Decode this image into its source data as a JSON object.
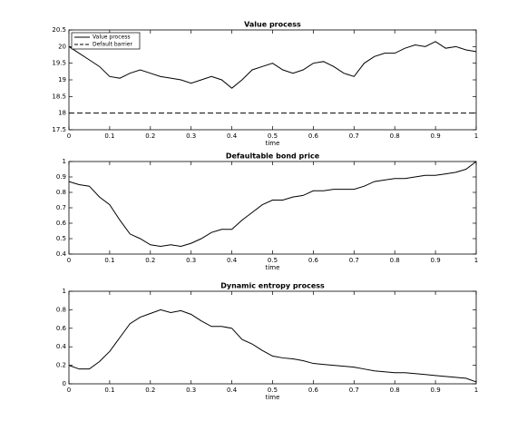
{
  "chart_data": [
    {
      "type": "line",
      "title": "Value process",
      "xlabel": "time",
      "x": [
        0,
        0.025,
        0.05,
        0.075,
        0.1,
        0.125,
        0.15,
        0.175,
        0.2,
        0.225,
        0.25,
        0.275,
        0.3,
        0.325,
        0.35,
        0.375,
        0.4,
        0.425,
        0.45,
        0.475,
        0.5,
        0.525,
        0.55,
        0.575,
        0.6,
        0.625,
        0.65,
        0.675,
        0.7,
        0.725,
        0.75,
        0.775,
        0.8,
        0.825,
        0.85,
        0.875,
        0.9,
        0.925,
        0.95,
        0.975,
        1
      ],
      "series": [
        {
          "name": "Value process",
          "color": "#000000",
          "linestyle": "solid",
          "values": [
            20.0,
            19.8,
            19.6,
            19.4,
            19.1,
            19.05,
            19.2,
            19.3,
            19.2,
            19.1,
            19.05,
            19.0,
            18.9,
            19.0,
            19.1,
            19.0,
            18.75,
            19.0,
            19.3,
            19.4,
            19.5,
            19.3,
            19.2,
            19.3,
            19.5,
            19.55,
            19.4,
            19.2,
            19.1,
            19.5,
            19.7,
            19.8,
            19.8,
            19.95,
            20.05,
            20.0,
            20.15,
            19.95,
            20.0,
            19.9,
            19.85
          ]
        },
        {
          "name": "Default barrier",
          "color": "#000000",
          "linestyle": "dashed",
          "values": [
            18,
            18,
            18,
            18,
            18,
            18,
            18,
            18,
            18,
            18,
            18,
            18,
            18,
            18,
            18,
            18,
            18,
            18,
            18,
            18,
            18,
            18,
            18,
            18,
            18,
            18,
            18,
            18,
            18,
            18,
            18,
            18,
            18,
            18,
            18,
            18,
            18,
            18,
            18,
            18,
            18
          ]
        }
      ],
      "xlim": [
        0,
        1
      ],
      "xticks": [
        0,
        0.1,
        0.2,
        0.3,
        0.4,
        0.5,
        0.6,
        0.7,
        0.8,
        0.9,
        1
      ],
      "ylim": [
        17.5,
        20.5
      ],
      "yticks": [
        17.5,
        18,
        18.5,
        19,
        19.5,
        20,
        20.5
      ],
      "legend": "upper left",
      "grid": false
    },
    {
      "type": "line",
      "title": "Defaultable bond price",
      "xlabel": "time",
      "x": [
        0,
        0.025,
        0.05,
        0.075,
        0.1,
        0.125,
        0.15,
        0.175,
        0.2,
        0.225,
        0.25,
        0.275,
        0.3,
        0.325,
        0.35,
        0.375,
        0.4,
        0.425,
        0.45,
        0.475,
        0.5,
        0.525,
        0.55,
        0.575,
        0.6,
        0.625,
        0.65,
        0.675,
        0.7,
        0.725,
        0.75,
        0.775,
        0.8,
        0.825,
        0.85,
        0.875,
        0.9,
        0.925,
        0.95,
        0.975,
        1
      ],
      "series": [
        {
          "color": "#000000",
          "linestyle": "solid",
          "values": [
            0.87,
            0.85,
            0.84,
            0.77,
            0.72,
            0.62,
            0.53,
            0.5,
            0.46,
            0.45,
            0.46,
            0.45,
            0.47,
            0.5,
            0.54,
            0.56,
            0.56,
            0.62,
            0.67,
            0.72,
            0.75,
            0.75,
            0.77,
            0.78,
            0.81,
            0.81,
            0.82,
            0.82,
            0.82,
            0.84,
            0.87,
            0.88,
            0.89,
            0.89,
            0.9,
            0.91,
            0.91,
            0.92,
            0.93,
            0.95,
            1.0
          ]
        }
      ],
      "xlim": [
        0,
        1
      ],
      "xticks": [
        0,
        0.1,
        0.2,
        0.3,
        0.4,
        0.5,
        0.6,
        0.7,
        0.8,
        0.9,
        1
      ],
      "ylim": [
        0.4,
        1
      ],
      "yticks": [
        0.4,
        0.5,
        0.6,
        0.7,
        0.8,
        0.9,
        1
      ],
      "grid": false
    },
    {
      "type": "line",
      "title": "Dynamic entropy process",
      "xlabel": "time",
      "x": [
        0,
        0.025,
        0.05,
        0.075,
        0.1,
        0.125,
        0.15,
        0.175,
        0.2,
        0.225,
        0.25,
        0.275,
        0.3,
        0.325,
        0.35,
        0.375,
        0.4,
        0.425,
        0.45,
        0.475,
        0.5,
        0.525,
        0.55,
        0.575,
        0.6,
        0.625,
        0.65,
        0.675,
        0.7,
        0.725,
        0.75,
        0.775,
        0.8,
        0.825,
        0.85,
        0.875,
        0.9,
        0.925,
        0.95,
        0.975,
        1
      ],
      "series": [
        {
          "color": "#000000",
          "linestyle": "solid",
          "values": [
            0.2,
            0.16,
            0.16,
            0.24,
            0.35,
            0.5,
            0.65,
            0.72,
            0.76,
            0.8,
            0.77,
            0.79,
            0.75,
            0.68,
            0.62,
            0.62,
            0.6,
            0.48,
            0.43,
            0.36,
            0.3,
            0.28,
            0.27,
            0.25,
            0.22,
            0.21,
            0.2,
            0.19,
            0.18,
            0.16,
            0.14,
            0.13,
            0.12,
            0.12,
            0.11,
            0.1,
            0.09,
            0.08,
            0.07,
            0.06,
            0.02
          ]
        }
      ],
      "xlim": [
        0,
        1
      ],
      "xticks": [
        0,
        0.1,
        0.2,
        0.3,
        0.4,
        0.5,
        0.6,
        0.7,
        0.8,
        0.9,
        1
      ],
      "ylim": [
        0,
        1
      ],
      "yticks": [
        0,
        0.2,
        0.4,
        0.6,
        0.8,
        1
      ],
      "grid": false
    }
  ]
}
